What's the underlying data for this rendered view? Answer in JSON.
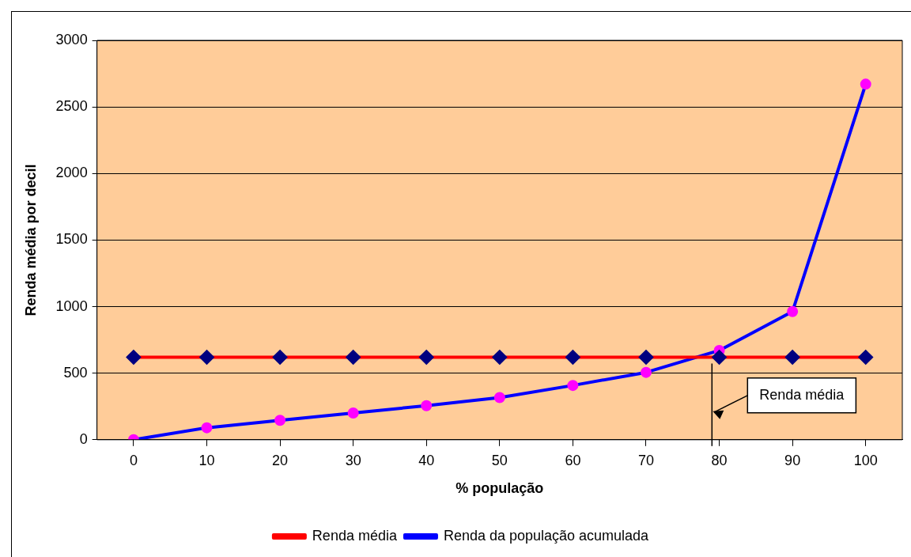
{
  "chart_data": {
    "type": "line",
    "xlabel": "% população",
    "ylabel": "Renda média por decil",
    "x": [
      0,
      10,
      20,
      30,
      40,
      50,
      60,
      70,
      80,
      90,
      100
    ],
    "xlim": [
      -5,
      105
    ],
    "xticks": [
      0,
      10,
      20,
      30,
      40,
      50,
      60,
      70,
      80,
      90,
      100
    ],
    "ylim": [
      0,
      3000
    ],
    "yticks": [
      0,
      500,
      1000,
      1500,
      2000,
      2500,
      3000
    ],
    "grid": "y",
    "legend": "bottom",
    "line_style": "solid",
    "series": [
      {
        "name": "Renda média",
        "color": "#ff0000",
        "marker": "diamond",
        "colors": [
          "#000080",
          "#000080",
          "#000080",
          "#000080",
          "#000080",
          "#000080",
          "#000080",
          "#000080",
          "#000080",
          "#000080",
          "#000080"
        ],
        "values": [
          620,
          620,
          620,
          620,
          620,
          620,
          620,
          620,
          620,
          620,
          620
        ]
      },
      {
        "name": "Renda da população acumulada",
        "color": "#0000ff",
        "marker": "circle",
        "colors": [
          "#ff00ff",
          "#ff00ff",
          "#ff00ff",
          "#ff00ff",
          "#ff00ff",
          "#ff00ff",
          "#ff00ff",
          "#ff00ff",
          "#ff00ff",
          "#ff00ff",
          "#ff00ff"
        ],
        "values": [
          0,
          90,
          146,
          201,
          256,
          317,
          408,
          506,
          671,
          963,
          2671
        ]
      }
    ],
    "ref_lines": [
      {
        "axis": "x",
        "value": 79,
        "label": "Renda média",
        "color": "#000000"
      }
    ]
  }
}
